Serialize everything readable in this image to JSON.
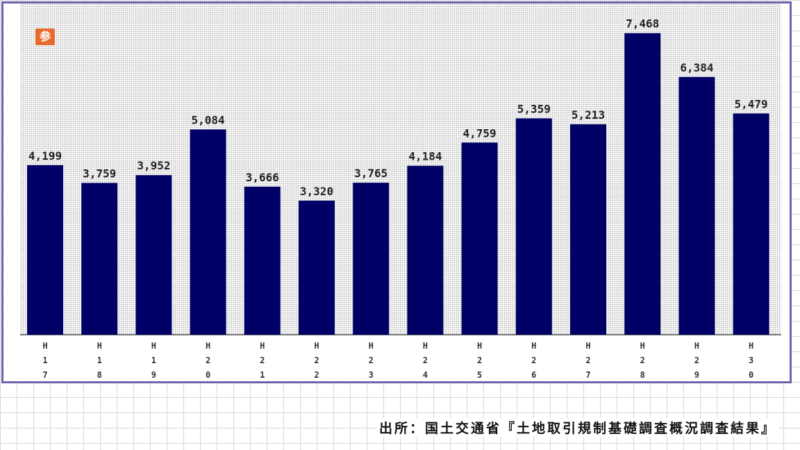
{
  "badge_label": "参",
  "source_text": "出所：国土交通省『土地取引規制基礎調査概況調査結果』",
  "colors": {
    "bar": "#000066",
    "frame": "#6a63b0",
    "badge": "#e86a2e"
  },
  "chart_data": {
    "type": "bar",
    "title": "",
    "xlabel": "",
    "ylabel": "",
    "categories": [
      "H17",
      "H18",
      "H19",
      "H20",
      "H21",
      "H22",
      "H23",
      "H24",
      "H25",
      "H26",
      "H27",
      "H28",
      "H29",
      "H30"
    ],
    "values": [
      4199,
      3759,
      3952,
      5084,
      3666,
      3320,
      3765,
      4184,
      4759,
      5359,
      5213,
      7468,
      6384,
      5479
    ],
    "value_labels": [
      "4,199",
      "3,759",
      "3,952",
      "5,084",
      "3,666",
      "3,320",
      "3,765",
      "4,184",
      "4,759",
      "5,359",
      "5,213",
      "7,468",
      "6,384",
      "5,479"
    ],
    "ylim": [
      0,
      8000
    ],
    "grid": false,
    "legend": "none"
  }
}
